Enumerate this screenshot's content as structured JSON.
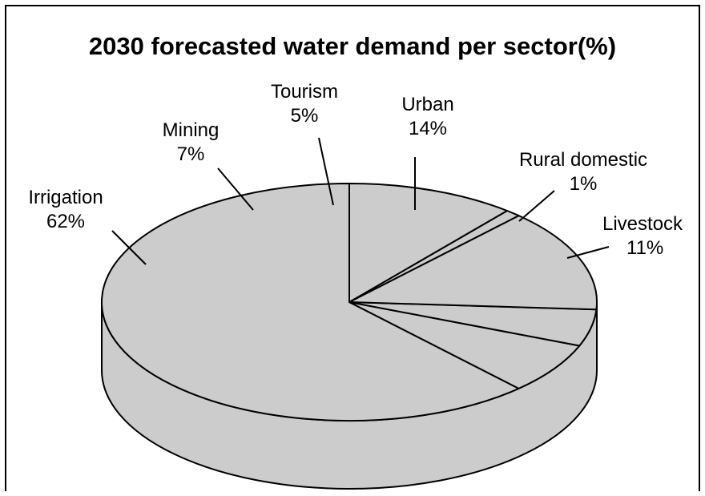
{
  "chart_data": {
    "type": "pie",
    "title": "2030 forecasted water demand per sector(%)",
    "three_d": true,
    "slices": [
      {
        "name": "Irrigation",
        "value": 62,
        "label": "62%"
      },
      {
        "name": "Mining",
        "value": 7,
        "label": "7%"
      },
      {
        "name": "Tourism",
        "value": 5,
        "label": "5%"
      },
      {
        "name": "Urban",
        "value": 14,
        "label": "14%"
      },
      {
        "name": "Rural domestic",
        "value": 1,
        "label": "1%"
      },
      {
        "name": "Livestock",
        "value": 11,
        "label": "11%"
      }
    ],
    "colors": {
      "slice_fill": "#cccccc",
      "outline": "#000000",
      "background": "#ffffff"
    }
  }
}
